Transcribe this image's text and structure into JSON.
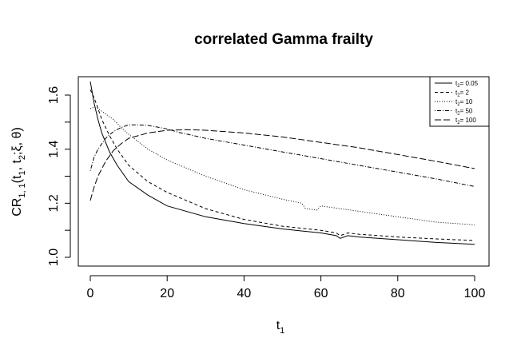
{
  "chart_data": {
    "type": "line",
    "title": "correlated Gamma frailty",
    "xlabel": {
      "base": "t",
      "sub": "1"
    },
    "ylabel": {
      "base": "CR",
      "sub1": "1, 1",
      "args": "(t",
      "sub2": "1",
      "sep": ", t",
      "sub3": "2",
      "rest": ";ξ, θ)"
    },
    "xlim": [
      0,
      100
    ],
    "ylim": [
      1.0,
      1.6
    ],
    "x_ticks": [
      0,
      20,
      40,
      60,
      80,
      100
    ],
    "x_tick_labels": [
      "0",
      "20",
      "40",
      "60",
      "80",
      "100"
    ],
    "y_ticks": [
      1.0,
      1.2,
      1.4,
      1.6
    ],
    "y_tick_labels": [
      "1.0",
      "1.2",
      "1.4",
      "1.6"
    ],
    "grid": false,
    "legend_position": "top-right",
    "series": [
      {
        "name": "t2 = 0.05",
        "legend": {
          "base": "t",
          "sub": "2",
          "rest": "= 0.05"
        },
        "dash": "solid",
        "x": [
          0,
          1,
          2,
          3,
          5,
          7,
          10,
          15,
          20,
          30,
          40,
          50,
          60,
          64,
          65,
          67,
          70,
          80,
          90,
          100
        ],
        "y": [
          1.65,
          1.57,
          1.51,
          1.46,
          1.39,
          1.34,
          1.28,
          1.23,
          1.19,
          1.15,
          1.125,
          1.105,
          1.09,
          1.08,
          1.07,
          1.08,
          1.075,
          1.065,
          1.055,
          1.048
        ]
      },
      {
        "name": "t2 = 2",
        "legend": {
          "base": "t",
          "sub": "2",
          "rest": "= 2"
        },
        "dash": "dashed",
        "x": [
          0,
          1,
          2,
          3,
          5,
          7,
          10,
          15,
          20,
          30,
          40,
          50,
          60,
          64,
          65,
          67,
          70,
          80,
          90,
          100
        ],
        "y": [
          1.62,
          1.59,
          1.55,
          1.51,
          1.45,
          1.4,
          1.34,
          1.28,
          1.24,
          1.18,
          1.14,
          1.115,
          1.1,
          1.09,
          1.08,
          1.09,
          1.085,
          1.075,
          1.068,
          1.062
        ]
      },
      {
        "name": "t2 = 10",
        "legend": {
          "base": "t",
          "sub": "2",
          "rest": "= 10"
        },
        "dash": "dotted",
        "x": [
          0,
          1,
          2,
          4,
          6,
          8,
          10,
          15,
          20,
          30,
          40,
          50,
          55,
          56,
          59,
          60,
          70,
          80,
          90,
          100
        ],
        "y": [
          1.55,
          1.555,
          1.55,
          1.53,
          1.51,
          1.48,
          1.455,
          1.4,
          1.36,
          1.3,
          1.25,
          1.215,
          1.2,
          1.18,
          1.175,
          1.19,
          1.17,
          1.15,
          1.13,
          1.12
        ]
      },
      {
        "name": "t2 = 50",
        "legend": {
          "base": "t",
          "sub": "2",
          "rest": "= 50"
        },
        "dash": "dashdot",
        "x": [
          0,
          1,
          2,
          4,
          6,
          8,
          10,
          12,
          15,
          20,
          23,
          25,
          30,
          40,
          50,
          60,
          70,
          80,
          90,
          100
        ],
        "y": [
          1.32,
          1.37,
          1.4,
          1.44,
          1.465,
          1.48,
          1.49,
          1.49,
          1.488,
          1.475,
          1.462,
          1.456,
          1.44,
          1.415,
          1.39,
          1.365,
          1.34,
          1.315,
          1.29,
          1.262
        ]
      },
      {
        "name": "t2 = 100",
        "legend": {
          "base": "t",
          "sub": "2",
          "rest": "= 100"
        },
        "dash": "longdash",
        "x": [
          0,
          1,
          2,
          4,
          6,
          8,
          10,
          15,
          20,
          25,
          30,
          40,
          50,
          60,
          70,
          80,
          90,
          100
        ],
        "y": [
          1.21,
          1.26,
          1.3,
          1.355,
          1.395,
          1.42,
          1.44,
          1.46,
          1.47,
          1.472,
          1.47,
          1.46,
          1.445,
          1.425,
          1.405,
          1.38,
          1.355,
          1.328
        ]
      }
    ]
  }
}
